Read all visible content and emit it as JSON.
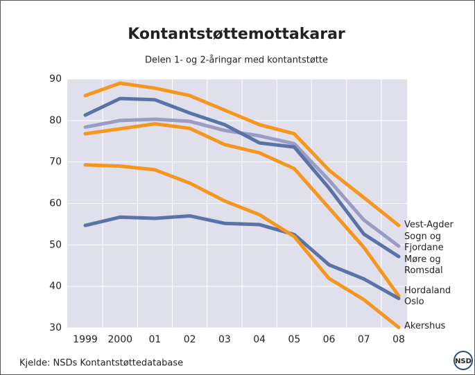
{
  "chart_data": {
    "type": "line",
    "title": "Kontantstøttemottakarar",
    "subtitle": "Delen 1- og 2-åringar med kontantstøtte",
    "source": "Kjelde: NSDs Kontantstøttedatabase",
    "logo": "NSD",
    "categories": [
      "1999",
      "2000",
      "01",
      "02",
      "03",
      "04",
      "05",
      "06",
      "07",
      "08"
    ],
    "ylim": [
      30,
      90
    ],
    "yticks": [
      30,
      40,
      50,
      60,
      70,
      80,
      90
    ],
    "grid": true,
    "series": [
      {
        "name": "Vest-Agder",
        "color": "#f5961e",
        "values": [
          86,
          89,
          87.8,
          86,
          82.5,
          79,
          76.8,
          68,
          61.4,
          54.7
        ]
      },
      {
        "name": "Sogn og Fjordane",
        "color": "#9a9cc4",
        "values": [
          78.4,
          80,
          80.3,
          79.8,
          77.6,
          76.3,
          74.4,
          65.6,
          56,
          49.7
        ]
      },
      {
        "name": "Møre og Romsdal",
        "color": "#5a73a6",
        "values": [
          81.3,
          85.3,
          85,
          81.8,
          79,
          74.6,
          73.6,
          63.7,
          52.6,
          47.2
        ]
      },
      {
        "name": "Hordaland",
        "color": "#f5961e",
        "values": [
          76.8,
          78,
          79.2,
          78.1,
          74.2,
          72.2,
          68.4,
          58.9,
          49.4,
          37.7
        ]
      },
      {
        "name": "Oslo",
        "color": "#5a73a6",
        "values": [
          54.7,
          56.7,
          56.4,
          57,
          55.2,
          54.9,
          52.5,
          45.2,
          41.8,
          37.1
        ]
      },
      {
        "name": "Akershus",
        "color": "#f5961e",
        "values": [
          69.3,
          69,
          68.1,
          64.9,
          60.6,
          57.3,
          52,
          41.9,
          36.8,
          30.1
        ]
      }
    ]
  }
}
